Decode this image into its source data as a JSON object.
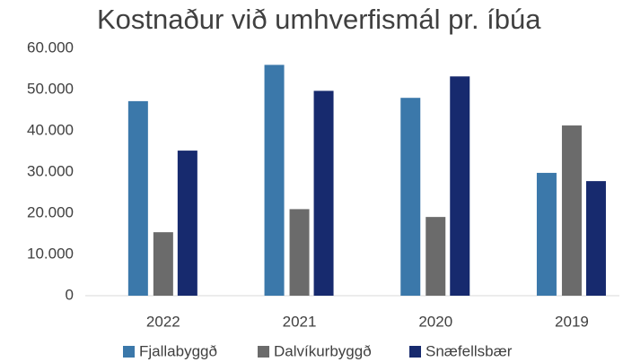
{
  "chart_data": {
    "type": "bar",
    "title": "Kostnaður við umhverfismál pr. íbúa",
    "categories": [
      "2022",
      "2021",
      "2020",
      "2019"
    ],
    "series": [
      {
        "name": "Fjallabyggð",
        "color": "#3b78aa",
        "values": [
          47200,
          56000,
          48000,
          29800
        ]
      },
      {
        "name": "Dalvíkurbyggð",
        "color": "#6b6b6b",
        "values": [
          15400,
          21000,
          19100,
          41300
        ]
      },
      {
        "name": "Snæfellsbær",
        "color": "#172a6e",
        "values": [
          35200,
          49700,
          53200,
          27800
        ]
      }
    ],
    "ylim": [
      0,
      60000
    ],
    "yticks": [
      0,
      {
        "value": 10000,
        "label": "10.000"
      },
      {
        "value": 20000,
        "label": "20.000"
      },
      {
        "value": 30000,
        "label": "30.000"
      },
      {
        "value": 40000,
        "label": "40.000"
      },
      {
        "value": 50000,
        "label": "50.000"
      },
      {
        "value": 60000,
        "label": "60.000"
      }
    ],
    "grid": false,
    "legend": "bottom"
  }
}
